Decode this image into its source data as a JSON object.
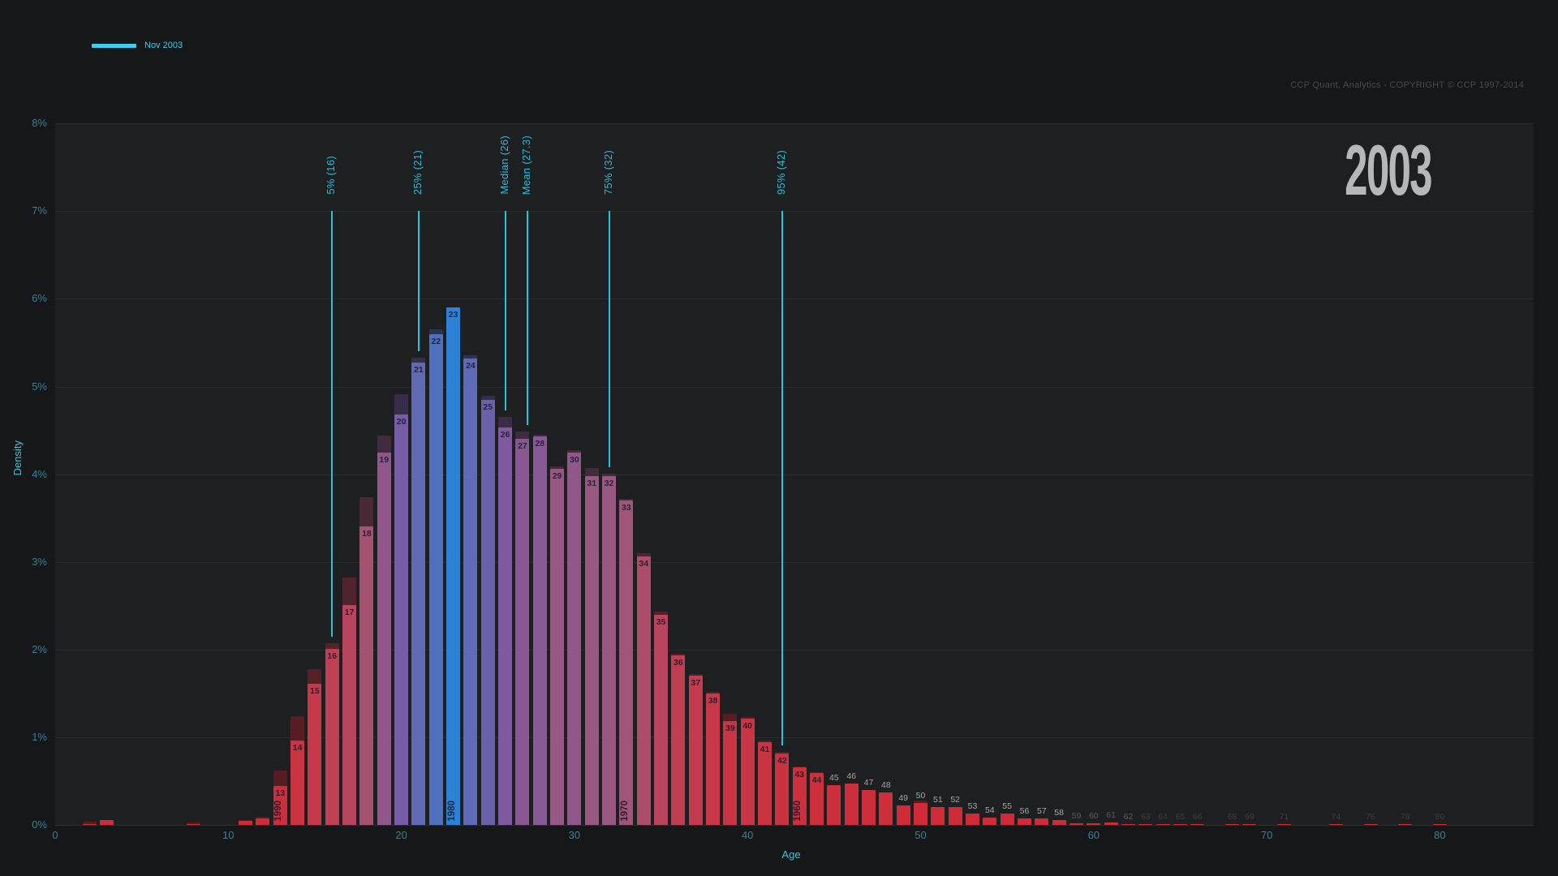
{
  "legend": {
    "label": "Nov 2003",
    "color": "#3ecdef"
  },
  "watermark": "CCP Quant, Analytics - COPYRIGHT © CCP 1997-2014",
  "year_title": "2003",
  "colors": {
    "background": "#161718",
    "panel": "#1d1f21",
    "accent_cyan": "#3ecdef",
    "tick_cyan": "#3a7f95",
    "axis_title_cyan": "#3fc4e0",
    "percentile_cyan": "#2ebcd8",
    "year_title_gray": "#b5b8ba",
    "watermark_gray": "#47494b",
    "bar_label_dark": "rgba(14,20,34,0.8)",
    "bar_label_gray": "#a6a6a6"
  },
  "chart_data": {
    "type": "bar",
    "title": "2003",
    "xlabel": "Age",
    "ylabel": "Density",
    "legend_entries": [
      "Nov 2003"
    ],
    "x_ticks": [
      0,
      10,
      20,
      30,
      40,
      50,
      60,
      70,
      80
    ],
    "y_ticks": [
      "0%",
      "1%",
      "2%",
      "3%",
      "4%",
      "5%",
      "6%",
      "7%",
      "8%"
    ],
    "xlim": [
      0,
      85
    ],
    "ylim": [
      0,
      8
    ],
    "grid": "horizontal",
    "gradient_stops": [
      [
        0.0,
        "#d02a35"
      ],
      [
        1.5,
        "#c73849"
      ],
      [
        2.5,
        "#b7455f"
      ],
      [
        3.1,
        "#aa4e6c"
      ],
      [
        3.7,
        "#a05578"
      ],
      [
        4.0,
        "#985882"
      ],
      [
        4.3,
        "#91578b"
      ],
      [
        4.55,
        "#7e5aa0"
      ],
      [
        4.85,
        "#6b60ab"
      ],
      [
        5.3,
        "#5f6ab4"
      ],
      [
        5.6,
        "#4f70bd"
      ],
      [
        5.9,
        "#2e82d6"
      ]
    ],
    "percentiles": [
      {
        "label": "5% (16)",
        "age": 16,
        "ref_age": 16
      },
      {
        "label": "25% (21)",
        "age": 21,
        "ref_age": 21
      },
      {
        "label": "Median (26)",
        "age": 26,
        "ref_age": 26
      },
      {
        "label": "Mean (27.3)",
        "age": 27.3,
        "ref_age": 27
      },
      {
        "label": "75% (32)",
        "age": 32,
        "ref_age": 32
      },
      {
        "label": "95% (42)",
        "age": 42,
        "ref_age": 42
      }
    ],
    "birth_years": [
      {
        "age": 13,
        "label": "1990"
      },
      {
        "age": 23,
        "label": "1980"
      },
      {
        "age": 33,
        "label": "1970"
      },
      {
        "age": 43,
        "label": "1960"
      }
    ],
    "bars": [
      {
        "age": 2,
        "v": 0.005,
        "s": 0.035
      },
      {
        "age": 3,
        "v": 0.055,
        "s": 0.06
      },
      {
        "age": 8,
        "v": 0.005,
        "s": 0.03
      },
      {
        "age": 11,
        "v": 0.05,
        "s": 0.055
      },
      {
        "age": 12,
        "v": 0.075,
        "s": 0.09
      },
      {
        "age": 13,
        "v": 0.44,
        "s": 0.62
      },
      {
        "age": 14,
        "v": 0.96,
        "s": 1.24
      },
      {
        "age": 15,
        "v": 1.61,
        "s": 1.78
      },
      {
        "age": 16,
        "v": 2.01,
        "s": 2.07
      },
      {
        "age": 17,
        "v": 2.51,
        "s": 2.82
      },
      {
        "age": 18,
        "v": 3.4,
        "s": 3.74
      },
      {
        "age": 19,
        "v": 4.25,
        "s": 4.44
      },
      {
        "age": 20,
        "v": 4.68,
        "s": 4.91
      },
      {
        "age": 21,
        "v": 5.27,
        "s": 5.33
      },
      {
        "age": 22,
        "v": 5.6,
        "s": 5.65
      },
      {
        "age": 23,
        "v": 5.9,
        "s": 5.9
      },
      {
        "age": 24,
        "v": 5.32,
        "s": 5.36
      },
      {
        "age": 25,
        "v": 4.85,
        "s": 4.89
      },
      {
        "age": 26,
        "v": 4.53,
        "s": 4.65
      },
      {
        "age": 27,
        "v": 4.4,
        "s": 4.49
      },
      {
        "age": 28,
        "v": 4.43,
        "s": 4.45
      },
      {
        "age": 29,
        "v": 4.06,
        "s": 4.09
      },
      {
        "age": 30,
        "v": 4.25,
        "s": 4.27
      },
      {
        "age": 31,
        "v": 3.98,
        "s": 4.07
      },
      {
        "age": 32,
        "v": 3.98,
        "s": 4.01
      },
      {
        "age": 33,
        "v": 3.7,
        "s": 3.72
      },
      {
        "age": 34,
        "v": 3.06,
        "s": 3.1
      },
      {
        "age": 35,
        "v": 2.4,
        "s": 2.43
      },
      {
        "age": 36,
        "v": 1.93,
        "s": 1.95
      },
      {
        "age": 37,
        "v": 1.7,
        "s": 1.72
      },
      {
        "age": 38,
        "v": 1.5,
        "s": 1.52
      },
      {
        "age": 39,
        "v": 1.18,
        "s": 1.27
      },
      {
        "age": 40,
        "v": 1.21,
        "s": 1.23
      },
      {
        "age": 41,
        "v": 0.94,
        "s": 0.96
      },
      {
        "age": 42,
        "v": 0.81,
        "s": 0.83
      },
      {
        "age": 43,
        "v": 0.66,
        "s": 0.67
      },
      {
        "age": 44,
        "v": 0.59,
        "s": 0.6
      },
      {
        "age": 45,
        "v": 0.45,
        "s": 0.45
      },
      {
        "age": 46,
        "v": 0.47,
        "s": 0.47
      },
      {
        "age": 47,
        "v": 0.4,
        "s": 0.4
      },
      {
        "age": 48,
        "v": 0.37,
        "s": 0.37
      },
      {
        "age": 49,
        "v": 0.22,
        "s": 0.22
      },
      {
        "age": 50,
        "v": 0.25,
        "s": 0.28
      },
      {
        "age": 51,
        "v": 0.2,
        "s": 0.2
      },
      {
        "age": 52,
        "v": 0.2,
        "s": 0.2
      },
      {
        "age": 53,
        "v": 0.13,
        "s": 0.13
      },
      {
        "age": 54,
        "v": 0.08,
        "s": 0.08
      },
      {
        "age": 55,
        "v": 0.13,
        "s": 0.13
      },
      {
        "age": 56,
        "v": 0.07,
        "s": 0.07
      },
      {
        "age": 57,
        "v": 0.07,
        "s": 0.07
      },
      {
        "age": 58,
        "v": 0.06,
        "s": 0.06
      },
      {
        "age": 59,
        "v": 0.02,
        "s": 0.02
      },
      {
        "age": 60,
        "v": 0.015,
        "s": 0.015
      },
      {
        "age": 61,
        "v": 0.03,
        "s": 0.03
      },
      {
        "age": 62,
        "v": 0.012,
        "s": 0.012
      },
      {
        "age": 63,
        "v": 0.006,
        "s": 0.006
      },
      {
        "age": 64,
        "v": 0.006,
        "s": 0.006
      },
      {
        "age": 65,
        "v": 0.006,
        "s": 0.006
      },
      {
        "age": 66,
        "v": 0.006,
        "s": 0.006
      },
      {
        "age": 68,
        "v": 0.006,
        "s": 0.006
      },
      {
        "age": 69,
        "v": 0.006,
        "s": 0.006
      },
      {
        "age": 71,
        "v": 0.006,
        "s": 0.006
      },
      {
        "age": 74,
        "v": 0.006,
        "s": 0.006
      },
      {
        "age": 76,
        "v": 0.006,
        "s": 0.006
      },
      {
        "age": 78,
        "v": 0.006,
        "s": 0.006
      },
      {
        "age": 80,
        "v": 0.006,
        "s": 0.006
      }
    ]
  }
}
